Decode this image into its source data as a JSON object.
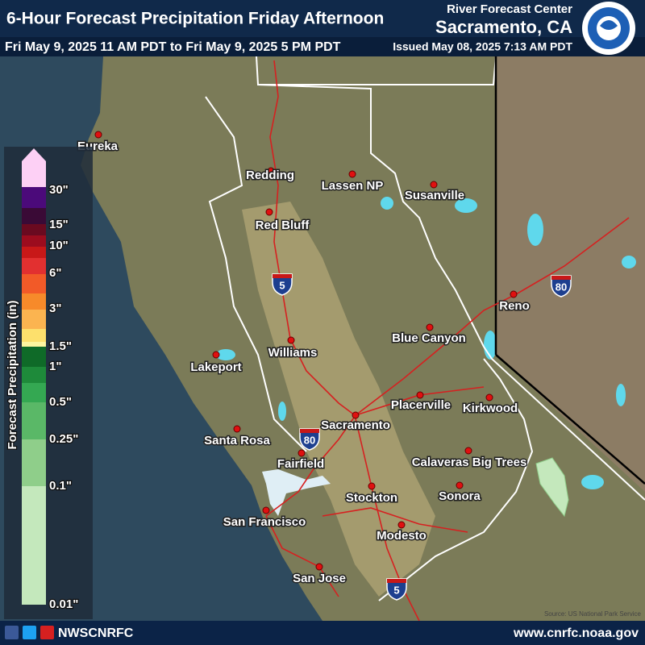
{
  "header": {
    "title": "6-Hour Forecast Precipitation Friday Afternoon",
    "center_label": "River Forecast Center",
    "office": "Sacramento, CA",
    "valid": "Fri May 9, 2025 11 AM PDT to Fri May 9, 2025 5 PM PDT",
    "issued": "Issued May 08, 2025 7:13 AM PDT"
  },
  "legend": {
    "title": "Forecast Precipitation (in)",
    "colors": [
      "#fdd0f5",
      "#4b0a7a",
      "#3a0a36",
      "#6a0a20",
      "#9c0c1e",
      "#c81818",
      "#e23030",
      "#f25a28",
      "#f78a2a",
      "#fbb450",
      "#fde06c",
      "#fdf5a0",
      "#0f6a28",
      "#1e8a3a",
      "#34a852",
      "#5ab867",
      "#8fce8a",
      "#c4e8bc"
    ],
    "labels": [
      "30\"",
      "15\"",
      "10\"",
      "6\"",
      "3\"",
      "1.5\"",
      "1\"",
      "0.5\"",
      "0.25\"",
      "0.1\"",
      "0.01\""
    ]
  },
  "cities": [
    "Eureka",
    "Redding",
    "Lassen NP",
    "Susanville",
    "Red Bluff",
    "Reno",
    "Blue Canyon",
    "Williams",
    "Lakeport",
    "Placerville",
    "Kirkwood",
    "Sacramento",
    "Santa Rosa",
    "Calaveras Big Trees",
    "Fairfield",
    "Stockton",
    "Sonora",
    "San Francisco",
    "Modesto",
    "San Jose"
  ],
  "shields": [
    "5",
    "80",
    "80",
    "5"
  ],
  "source": "Source: US National Park Service",
  "footer": {
    "handle": "NWSCNRFC",
    "url": "www.cnrfc.noaa.gov"
  }
}
